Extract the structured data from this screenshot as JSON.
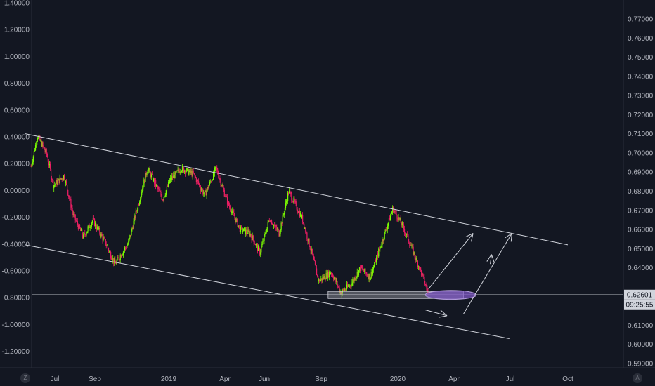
{
  "chart_data": {
    "type": "candlestick",
    "colors": {
      "background": "#131722",
      "up": "#7cfc00",
      "down": "#e91e63",
      "line": "#d1d4dc",
      "ellipse": "#7e57c2"
    },
    "left_axis": {
      "ticks": [
        "1.40000",
        "1.20000",
        "1.00000",
        "0.80000",
        "0.60000",
        "0.40000",
        "0.20000",
        "0.00000",
        "-0.20000",
        "-0.40000",
        "-0.60000",
        "-0.80000",
        "-1.00000",
        "-1.20000"
      ]
    },
    "right_axis": {
      "ticks": [
        "0.77000",
        "0.76000",
        "0.75000",
        "0.74000",
        "0.73000",
        "0.72000",
        "0.71000",
        "0.70000",
        "0.69000",
        "0.68000",
        "0.67000",
        "0.66000",
        "0.65000",
        "0.64000",
        "0.63000",
        "0.62000",
        "0.61000",
        "0.60000",
        "0.59000"
      ]
    },
    "x_axis": {
      "ticks": [
        "Jul",
        "Sep",
        "2019",
        "Apr",
        "Jun",
        "Sep",
        "2020",
        "Apr",
        "Jul",
        "Oct"
      ]
    },
    "price_anchors": [
      [
        "2018-06-10",
        0.693
      ],
      [
        "2018-06-20",
        0.709
      ],
      [
        "2018-07-05",
        0.699
      ],
      [
        "2018-07-15",
        0.683
      ],
      [
        "2018-08-01",
        0.688
      ],
      [
        "2018-08-15",
        0.668
      ],
      [
        "2018-08-31",
        0.656
      ],
      [
        "2018-09-15",
        0.665
      ],
      [
        "2018-10-05",
        0.653
      ],
      [
        "2018-10-20",
        0.642
      ],
      [
        "2018-11-10",
        0.653
      ],
      [
        "2018-12-10",
        0.692
      ],
      [
        "2019-01-03",
        0.676
      ],
      [
        "2019-01-15",
        0.686
      ],
      [
        "2019-02-01",
        0.692
      ],
      [
        "2019-02-20",
        0.689
      ],
      [
        "2019-03-10",
        0.678
      ],
      [
        "2019-03-28",
        0.692
      ],
      [
        "2019-04-15",
        0.674
      ],
      [
        "2019-05-05",
        0.66
      ],
      [
        "2019-05-20",
        0.658
      ],
      [
        "2019-06-05",
        0.648
      ],
      [
        "2019-06-20",
        0.666
      ],
      [
        "2019-07-05",
        0.658
      ],
      [
        "2019-07-20",
        0.68
      ],
      [
        "2019-08-10",
        0.666
      ],
      [
        "2019-08-25",
        0.648
      ],
      [
        "2019-09-05",
        0.633
      ],
      [
        "2019-09-25",
        0.638
      ],
      [
        "2019-10-10",
        0.627
      ],
      [
        "2019-10-25",
        0.631
      ],
      [
        "2019-11-10",
        0.64
      ],
      [
        "2019-11-25",
        0.635
      ],
      [
        "2019-12-10",
        0.65
      ],
      [
        "2019-12-31",
        0.671
      ],
      [
        "2020-01-15",
        0.662
      ],
      [
        "2020-01-30",
        0.65
      ],
      [
        "2020-02-15",
        0.636
      ],
      [
        "2020-02-25",
        0.626
      ]
    ],
    "drawings": {
      "upper_channel": [
        [
          "2018-06-01",
          0.71
        ],
        [
          "2020-10-01",
          0.652
        ]
      ],
      "lower_channel": [
        [
          "2018-06-01",
          0.652
        ],
        [
          "2020-07-01",
          0.603
        ]
      ],
      "horizontal_line": 0.62601,
      "support_zone": {
        "from": "2019-09-20",
        "to": "2020-04-20",
        "top": 0.6277,
        "bottom": 0.624
      },
      "ellipse": {
        "x1": "2020-02-20",
        "x2": "2020-05-10",
        "top": 0.6282,
        "bottom": 0.6235
      },
      "arrows": [
        [
          [
            "2020-02-25",
            0.629
          ],
          [
            "2020-05-05",
            0.658
          ]
        ],
        [
          [
            "2020-04-20",
            0.616
          ],
          [
            "2020-07-05",
            0.658
          ]
        ],
        [
          [
            "2020-06-01",
            0.642
          ],
          [
            "2020-06-03",
            0.647
          ]
        ],
        [
          [
            "2020-02-20",
            0.618
          ],
          [
            "2020-03-25",
            0.615
          ]
        ]
      ]
    }
  },
  "price_tag": {
    "price": "0.62601",
    "countdown": "09:25:55"
  },
  "corner_left": "Z",
  "corner_right": "A"
}
